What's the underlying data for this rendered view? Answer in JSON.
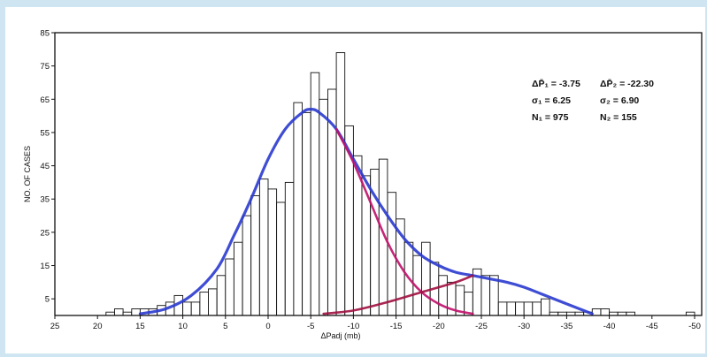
{
  "chart_data": {
    "type": "bar",
    "title": "",
    "xlabel": "ΔPadj (mb)",
    "ylabel": "NO. OF CASES",
    "xlim": [
      25,
      -50
    ],
    "ylim": [
      0,
      85
    ],
    "x_tick_labels": [
      "25",
      "20",
      "15",
      "10",
      "5",
      "0",
      "-5",
      "-10",
      "-15",
      "-20",
      "-25",
      "-30",
      "-35",
      "-40",
      "-45",
      "-50"
    ],
    "x_tick_values": [
      25,
      20,
      15,
      10,
      5,
      0,
      -5,
      -10,
      -15,
      -20,
      -25,
      -30,
      -35,
      -40,
      -45,
      -50
    ],
    "y_tick_labels": [
      "5",
      "15",
      "25",
      "35",
      "45",
      "55",
      "65",
      "75",
      "85"
    ],
    "y_tick_values": [
      5,
      15,
      25,
      35,
      45,
      55,
      65,
      75,
      85
    ],
    "bin_width": 1,
    "histogram": {
      "bin_centers": [
        18.5,
        17.5,
        16.5,
        15.5,
        14.5,
        13.5,
        12.5,
        11.5,
        10.5,
        9.5,
        8.5,
        7.5,
        6.5,
        5.5,
        4.5,
        3.5,
        2.5,
        1.5,
        0.5,
        -0.5,
        -1.5,
        -2.5,
        -3.5,
        -4.5,
        -5.5,
        -6.5,
        -7.5,
        -8.5,
        -9.5,
        -10.5,
        -11.5,
        -12.5,
        -13.5,
        -14.5,
        -15.5,
        -16.5,
        -17.5,
        -18.5,
        -19.5,
        -20.5,
        -21.5,
        -22.5,
        -23.5,
        -24.5,
        -25.5,
        -26.5,
        -27.5,
        -28.5,
        -29.5,
        -30.5,
        -31.5,
        -32.5,
        -33.5,
        -34.5,
        -35.5,
        -36.5,
        -37.5,
        -38.5,
        -39.5,
        -40.5,
        -41.5,
        -42.5,
        -49.5
      ],
      "counts": [
        1,
        2,
        1,
        2,
        2,
        2,
        3,
        4,
        6,
        4,
        4,
        7,
        8,
        12,
        17,
        22,
        30,
        36,
        41,
        38,
        34,
        40,
        64,
        61,
        73,
        65,
        68,
        79,
        57,
        48,
        42,
        44,
        47,
        37,
        29,
        22,
        18,
        22,
        16,
        12,
        10,
        9,
        7,
        14,
        12,
        12,
        4,
        4,
        4,
        4,
        4,
        5,
        1,
        1,
        1,
        1,
        1,
        2,
        2,
        1,
        1,
        1,
        1
      ]
    },
    "series": [
      {
        "name": "",
        "type": "line",
        "color": "#2a3acf",
        "x": [
          15,
          12,
          9,
          6,
          4,
          2,
          0,
          -2,
          -4,
          -5,
          -6,
          -8,
          -10,
          -12,
          -14,
          -16,
          -18,
          -20,
          -22,
          -24,
          -26,
          -28,
          -30,
          -32,
          -34,
          -36,
          -38
        ],
        "y": [
          0.5,
          2,
          6,
          14,
          24,
          35,
          47,
          56,
          61,
          62,
          61,
          56,
          47,
          38,
          30,
          23,
          18,
          15,
          13,
          12,
          11,
          10,
          8.5,
          6.5,
          4.5,
          2.5,
          0.5
        ]
      },
      {
        "name": "",
        "type": "line",
        "color": "#c0106a",
        "x": [
          -8,
          -10,
          -12,
          -14,
          -16,
          -18,
          -20,
          -22,
          -24
        ],
        "y": [
          56,
          46,
          34,
          22,
          13,
          7,
          3.5,
          1.5,
          0.5
        ]
      },
      {
        "name": "",
        "type": "line",
        "color": "#a01040",
        "x": [
          -6.5,
          -10,
          -14,
          -18,
          -22,
          -24
        ],
        "y": [
          0.5,
          1.5,
          4,
          7,
          10,
          12
        ]
      }
    ],
    "annotations": [
      [
        "ΔP̄₁ = -3.75",
        "ΔP̄₂ = -22.30"
      ],
      [
        "σ₁ = 6.25",
        "σ₂ = 6.90"
      ],
      [
        "N₁ = 975",
        "N₂ = 155"
      ]
    ],
    "grid": false,
    "legend": "none"
  }
}
